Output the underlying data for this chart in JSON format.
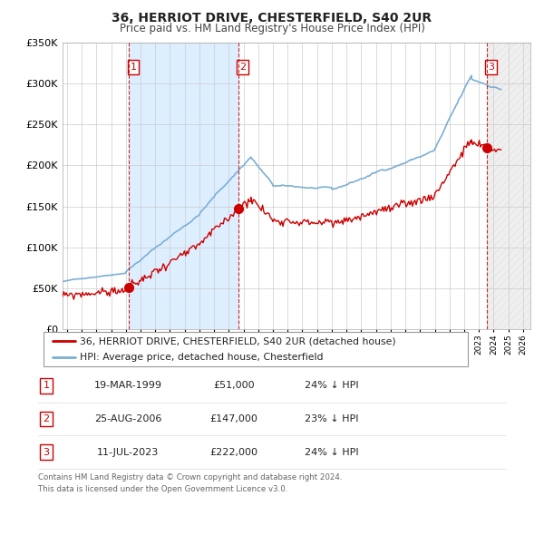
{
  "title": "36, HERRIOT DRIVE, CHESTERFIELD, S40 2UR",
  "subtitle": "Price paid vs. HM Land Registry's House Price Index (HPI)",
  "legend_line1": "36, HERRIOT DRIVE, CHESTERFIELD, S40 2UR (detached house)",
  "legend_line2": "HPI: Average price, detached house, Chesterfield",
  "sale_color": "#cc0000",
  "hpi_color": "#7bafd4",
  "vline_color": "#cc0000",
  "sale_dates_num": [
    1999.21,
    2006.65,
    2023.52
  ],
  "sale_prices": [
    51000,
    147000,
    222000
  ],
  "sale_labels": [
    "1",
    "2",
    "3"
  ],
  "table_rows": [
    [
      "1",
      "19-MAR-1999",
      "£51,000",
      "24% ↓ HPI"
    ],
    [
      "2",
      "25-AUG-2006",
      "£147,000",
      "23% ↓ HPI"
    ],
    [
      "3",
      "11-JUL-2023",
      "£222,000",
      "24% ↓ HPI"
    ]
  ],
  "footnote1": "Contains HM Land Registry data © Crown copyright and database right 2024.",
  "footnote2": "This data is licensed under the Open Government Licence v3.0.",
  "ylim": [
    0,
    350000
  ],
  "xlim_start": 1994.7,
  "xlim_end": 2026.5,
  "xtick_years": [
    1995,
    1996,
    1997,
    1998,
    1999,
    2000,
    2001,
    2002,
    2003,
    2004,
    2005,
    2006,
    2007,
    2008,
    2009,
    2010,
    2011,
    2012,
    2013,
    2014,
    2015,
    2016,
    2017,
    2018,
    2019,
    2020,
    2021,
    2022,
    2023,
    2024,
    2025,
    2026
  ],
  "shade_between_color": "#ddeeff",
  "shade_after_color": "#e8e8e8"
}
